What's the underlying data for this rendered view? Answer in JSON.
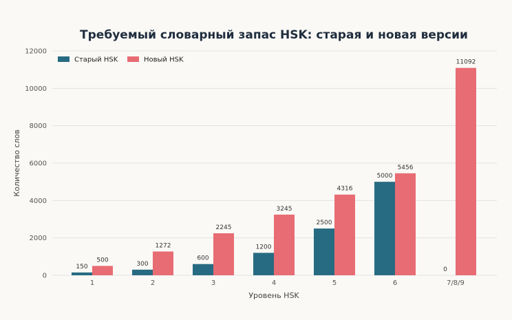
{
  "chart_data": {
    "type": "bar",
    "title": "Требуемый словарный запас HSK: старая и новая версии",
    "xlabel": "Уровень HSK",
    "ylabel": "Количество слов",
    "categories": [
      "1",
      "2",
      "3",
      "4",
      "5",
      "6",
      "7/8/9"
    ],
    "ylim": [
      0,
      12000
    ],
    "yticks": [
      0,
      2000,
      4000,
      6000,
      8000,
      10000,
      12000
    ],
    "grid": true,
    "legend_position": "top-left",
    "series": [
      {
        "name": "Старый HSK",
        "color": "#276b82",
        "values": [
          150,
          300,
          600,
          1200,
          2500,
          5000,
          0
        ]
      },
      {
        "name": "Новый HSK",
        "color": "#e86c73",
        "values": [
          500,
          1272,
          2245,
          3245,
          4316,
          5456,
          11092
        ]
      }
    ]
  }
}
